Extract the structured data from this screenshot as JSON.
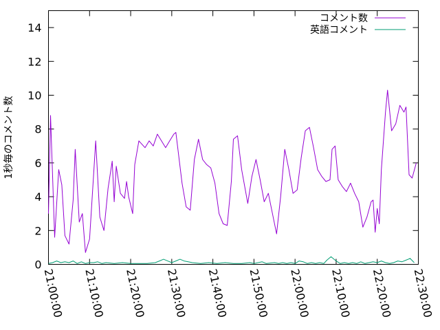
{
  "chart_data": {
    "type": "line",
    "title": "",
    "xlabel": "",
    "ylabel": "1秒毎のコメント数",
    "x_ticks": [
      "21:00:00",
      "21:10:00",
      "21:20:00",
      "21:30:00",
      "21:40:00",
      "21:50:00",
      "22:00:00",
      "22:10:00",
      "22:20:00",
      "22:30:00"
    ],
    "y_ticks": [
      "0",
      "2",
      "4",
      "6",
      "8",
      "10",
      "12",
      "14"
    ],
    "xlim": [
      "21:00:00",
      "22:30:00"
    ],
    "ylim": [
      0,
      15
    ],
    "grid": false,
    "legend_position": "top-right",
    "series": [
      {
        "name": "コメント数",
        "color": "#9400d3",
        "points": [
          [
            "21:00:00",
            3.0
          ],
          [
            "21:00:30",
            8.8
          ],
          [
            "21:01:30",
            1.6
          ],
          [
            "21:02:30",
            5.6
          ],
          [
            "21:03:15",
            4.7
          ],
          [
            "21:04:00",
            1.7
          ],
          [
            "21:05:00",
            1.2
          ],
          [
            "21:06:00",
            3.8
          ],
          [
            "21:06:30",
            6.8
          ],
          [
            "21:07:30",
            2.5
          ],
          [
            "21:08:15",
            3.0
          ],
          [
            "21:09:00",
            0.7
          ],
          [
            "21:10:00",
            1.5
          ],
          [
            "21:11:00",
            5.4
          ],
          [
            "21:11:30",
            7.3
          ],
          [
            "21:12:30",
            2.8
          ],
          [
            "21:13:30",
            2.0
          ],
          [
            "21:14:30",
            4.5
          ],
          [
            "21:15:30",
            6.1
          ],
          [
            "21:16:00",
            3.7
          ],
          [
            "21:16:30",
            5.8
          ],
          [
            "21:17:30",
            4.2
          ],
          [
            "21:18:30",
            3.9
          ],
          [
            "21:19:00",
            4.9
          ],
          [
            "21:19:30",
            4.0
          ],
          [
            "21:20:30",
            3.0
          ],
          [
            "21:21:00",
            5.9
          ],
          [
            "21:22:00",
            7.3
          ],
          [
            "21:23:30",
            6.9
          ],
          [
            "21:24:30",
            7.3
          ],
          [
            "21:25:30",
            7.0
          ],
          [
            "21:26:30",
            7.7
          ],
          [
            "21:28:30",
            6.9
          ],
          [
            "21:29:30",
            7.3
          ],
          [
            "21:30:30",
            7.7
          ],
          [
            "21:31:00",
            7.8
          ],
          [
            "21:32:30",
            4.8
          ],
          [
            "21:33:30",
            3.4
          ],
          [
            "21:34:30",
            3.2
          ],
          [
            "21:35:30",
            6.2
          ],
          [
            "21:36:30",
            7.4
          ],
          [
            "21:37:30",
            6.2
          ],
          [
            "21:38:30",
            5.9
          ],
          [
            "21:39:30",
            5.7
          ],
          [
            "21:40:30",
            4.8
          ],
          [
            "21:41:30",
            3.0
          ],
          [
            "21:42:30",
            2.4
          ],
          [
            "21:43:30",
            2.3
          ],
          [
            "21:44:30",
            4.9
          ],
          [
            "21:45:00",
            7.4
          ],
          [
            "21:46:00",
            7.6
          ],
          [
            "21:47:00",
            5.6
          ],
          [
            "21:48:30",
            3.6
          ],
          [
            "21:49:30",
            5.2
          ],
          [
            "21:50:30",
            6.2
          ],
          [
            "21:51:30",
            5.0
          ],
          [
            "21:52:30",
            3.7
          ],
          [
            "21:53:30",
            4.2
          ],
          [
            "21:54:30",
            3.0
          ],
          [
            "21:55:30",
            1.8
          ],
          [
            "21:56:30",
            4.0
          ],
          [
            "21:57:30",
            6.8
          ],
          [
            "21:58:30",
            5.6
          ],
          [
            "21:59:30",
            4.2
          ],
          [
            "22:00:30",
            4.4
          ],
          [
            "22:01:30",
            6.3
          ],
          [
            "22:02:30",
            7.9
          ],
          [
            "22:03:30",
            8.1
          ],
          [
            "22:04:30",
            6.9
          ],
          [
            "22:05:30",
            5.6
          ],
          [
            "22:06:30",
            5.2
          ],
          [
            "22:07:30",
            4.9
          ],
          [
            "22:08:30",
            5.0
          ],
          [
            "22:09:00",
            6.8
          ],
          [
            "22:09:45",
            7.0
          ],
          [
            "22:10:30",
            5.0
          ],
          [
            "22:11:30",
            4.6
          ],
          [
            "22:12:30",
            4.3
          ],
          [
            "22:13:30",
            4.8
          ],
          [
            "22:14:30",
            4.2
          ],
          [
            "22:15:30",
            3.7
          ],
          [
            "22:16:30",
            2.2
          ],
          [
            "22:17:30",
            2.8
          ],
          [
            "22:18:30",
            3.7
          ],
          [
            "22:19:00",
            3.8
          ],
          [
            "22:19:30",
            1.9
          ],
          [
            "22:20:00",
            3.3
          ],
          [
            "22:20:30",
            2.4
          ],
          [
            "22:21:00",
            5.6
          ],
          [
            "22:22:00",
            9.0
          ],
          [
            "22:22:30",
            10.3
          ],
          [
            "22:23:30",
            7.9
          ],
          [
            "22:24:30",
            8.3
          ],
          [
            "22:25:30",
            9.4
          ],
          [
            "22:26:30",
            9.0
          ],
          [
            "22:27:00",
            9.3
          ],
          [
            "22:27:45",
            5.3
          ],
          [
            "22:28:30",
            5.1
          ],
          [
            "22:29:30",
            6.0
          ]
        ]
      },
      {
        "name": "英語コメント",
        "color": "#009e73",
        "points": [
          [
            "21:00:00",
            0.05
          ],
          [
            "21:01:00",
            0.1
          ],
          [
            "21:02:00",
            0.2
          ],
          [
            "21:03:00",
            0.1
          ],
          [
            "21:04:00",
            0.15
          ],
          [
            "21:05:00",
            0.1
          ],
          [
            "21:06:00",
            0.2
          ],
          [
            "21:07:00",
            0.05
          ],
          [
            "21:08:00",
            0.15
          ],
          [
            "21:09:00",
            0.05
          ],
          [
            "21:10:00",
            0.1
          ],
          [
            "21:11:00",
            0.1
          ],
          [
            "21:12:00",
            0.15
          ],
          [
            "21:13:00",
            0.05
          ],
          [
            "21:14:00",
            0.1
          ],
          [
            "21:16:00",
            0.05
          ],
          [
            "21:18:00",
            0.1
          ],
          [
            "21:20:00",
            0.05
          ],
          [
            "21:22:00",
            0.05
          ],
          [
            "21:24:00",
            0.05
          ],
          [
            "21:26:00",
            0.1
          ],
          [
            "21:27:00",
            0.2
          ],
          [
            "21:28:00",
            0.3
          ],
          [
            "21:29:00",
            0.2
          ],
          [
            "21:30:00",
            0.1
          ],
          [
            "21:31:00",
            0.2
          ],
          [
            "21:32:00",
            0.3
          ],
          [
            "21:33:00",
            0.2
          ],
          [
            "21:34:00",
            0.15
          ],
          [
            "21:35:00",
            0.1
          ],
          [
            "21:37:00",
            0.05
          ],
          [
            "21:39:00",
            0.1
          ],
          [
            "21:41:00",
            0.05
          ],
          [
            "21:43:00",
            0.1
          ],
          [
            "21:45:00",
            0.05
          ],
          [
            "21:47:00",
            0.05
          ],
          [
            "21:49:00",
            0.1
          ],
          [
            "21:50:00",
            0.05
          ],
          [
            "21:52:00",
            0.15
          ],
          [
            "21:53:00",
            0.05
          ],
          [
            "21:55:00",
            0.1
          ],
          [
            "21:56:00",
            0.05
          ],
          [
            "21:57:00",
            0.1
          ],
          [
            "21:58:00",
            0.05
          ],
          [
            "21:59:00",
            0.1
          ],
          [
            "22:00:00",
            0.05
          ],
          [
            "22:01:00",
            0.2
          ],
          [
            "22:02:00",
            0.15
          ],
          [
            "22:03:00",
            0.05
          ],
          [
            "22:04:00",
            0.1
          ],
          [
            "22:05:00",
            0.05
          ],
          [
            "22:06:00",
            0.1
          ],
          [
            "22:07:00",
            0.05
          ],
          [
            "22:07:45",
            0.25
          ],
          [
            "22:08:45",
            0.45
          ],
          [
            "22:10:00",
            0.2
          ],
          [
            "22:11:00",
            0.05
          ],
          [
            "22:12:00",
            0.1
          ],
          [
            "22:13:00",
            0.05
          ],
          [
            "22:14:00",
            0.1
          ],
          [
            "22:15:00",
            0.05
          ],
          [
            "22:16:00",
            0.15
          ],
          [
            "22:17:00",
            0.05
          ],
          [
            "22:18:00",
            0.1
          ],
          [
            "22:19:00",
            0.15
          ],
          [
            "22:20:00",
            0.1
          ],
          [
            "22:21:00",
            0.2
          ],
          [
            "22:22:00",
            0.1
          ],
          [
            "22:23:00",
            0.05
          ],
          [
            "22:24:00",
            0.1
          ],
          [
            "22:25:00",
            0.2
          ],
          [
            "22:26:00",
            0.15
          ],
          [
            "22:27:00",
            0.25
          ],
          [
            "22:28:00",
            0.35
          ],
          [
            "22:29:00",
            0.1
          ]
        ]
      }
    ]
  }
}
